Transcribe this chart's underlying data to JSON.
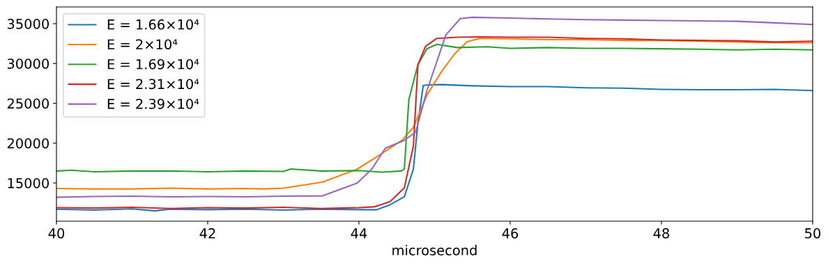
{
  "chart_data": {
    "type": "line",
    "xlabel": "microsecond",
    "xlim": [
      40,
      50
    ],
    "xticks": [
      40,
      42,
      44,
      46,
      48,
      50
    ],
    "ylim": [
      10200,
      37100
    ],
    "yticks": [
      15000,
      20000,
      25000,
      30000,
      35000
    ],
    "grid": false,
    "legend": "top left",
    "marker": "none",
    "line_style": "solid",
    "series": [
      {
        "name": "E = 1.66×10⁴",
        "color": "#1f77b4",
        "x": [
          40,
          40.5,
          41,
          41.3,
          41.5,
          42,
          42.5,
          43,
          43.5,
          44,
          44.23,
          44.4,
          44.6,
          44.72,
          44.78,
          44.85,
          44.9,
          45.1,
          45.5,
          46,
          46.5,
          47,
          47.5,
          48,
          48.5,
          49,
          49.5,
          50
        ],
        "values": [
          11700,
          11600,
          11750,
          11500,
          11700,
          11650,
          11700,
          11600,
          11700,
          11650,
          11630,
          12200,
          13260,
          16750,
          22540,
          27230,
          27300,
          27350,
          27200,
          27100,
          27100,
          26950,
          26900,
          26750,
          26700,
          26700,
          26750,
          26600
        ]
      },
      {
        "name": "E = 2×10⁴",
        "color": "#ff7f0e",
        "x": [
          40,
          40.5,
          41,
          41.5,
          42,
          42.5,
          42.76,
          43,
          43.52,
          43.98,
          44.29,
          44.57,
          44.72,
          44.9,
          45.09,
          45.27,
          45.43,
          45.6,
          46,
          46.5,
          47,
          47.5,
          48,
          48.5,
          49,
          49.5,
          50
        ],
        "values": [
          14300,
          14250,
          14250,
          14350,
          14250,
          14300,
          14250,
          14350,
          15120,
          16750,
          18610,
          20360,
          21990,
          26040,
          28970,
          31270,
          32730,
          33150,
          33100,
          33000,
          33000,
          32900,
          32900,
          32800,
          32700,
          32600,
          32600
        ]
      },
      {
        "name": "E = 1.69×10⁴",
        "color": "#2ca02c",
        "x": [
          40,
          40.2,
          40.5,
          41,
          41.5,
          42,
          42.5,
          43,
          43.1,
          43.5,
          44,
          44.3,
          44.56,
          44.6,
          44.66,
          44.78,
          44.9,
          45.03,
          45.3,
          45.7,
          46,
          46.5,
          47,
          47.5,
          48,
          48.5,
          49,
          49.5,
          50
        ],
        "values": [
          16500,
          16600,
          16400,
          16500,
          16500,
          16400,
          16500,
          16450,
          16750,
          16500,
          16550,
          16350,
          16500,
          16750,
          25480,
          29850,
          31860,
          32400,
          32000,
          32100,
          31900,
          32000,
          31900,
          31900,
          31850,
          31800,
          31700,
          31800,
          31700
        ]
      },
      {
        "name": "E = 2.31×10⁴",
        "color": "#d62728",
        "x": [
          40,
          40.5,
          41,
          41.5,
          42,
          42.5,
          43,
          43.5,
          44,
          44.2,
          44.41,
          44.6,
          44.72,
          44.78,
          44.88,
          45.03,
          45.3,
          45.6,
          46,
          46.5,
          47,
          47.5,
          48,
          48.5,
          49,
          49.5,
          50
        ],
        "values": [
          11900,
          11850,
          11950,
          11800,
          11900,
          11850,
          11950,
          11800,
          11900,
          12000,
          12650,
          14400,
          19640,
          29850,
          32150,
          33150,
          33300,
          33350,
          33300,
          33300,
          33150,
          33100,
          32950,
          32900,
          32850,
          32700,
          32800
        ]
      },
      {
        "name": "E = 2.39×10⁴",
        "color": "#9467bd",
        "x": [
          40,
          40.5,
          41,
          41.5,
          42,
          42.5,
          43,
          43.52,
          43.98,
          44.17,
          44.35,
          44.6,
          44.75,
          44.9,
          45.15,
          45.34,
          45.5,
          46,
          46.5,
          47,
          47.5,
          48,
          48.5,
          49,
          49.5,
          50
        ],
        "values": [
          13200,
          13300,
          13350,
          13250,
          13300,
          13250,
          13350,
          13380,
          15000,
          16750,
          19370,
          20360,
          21380,
          26620,
          33600,
          35640,
          35800,
          35700,
          35600,
          35500,
          35450,
          35400,
          35350,
          35300,
          35100,
          34900
        ]
      }
    ]
  }
}
